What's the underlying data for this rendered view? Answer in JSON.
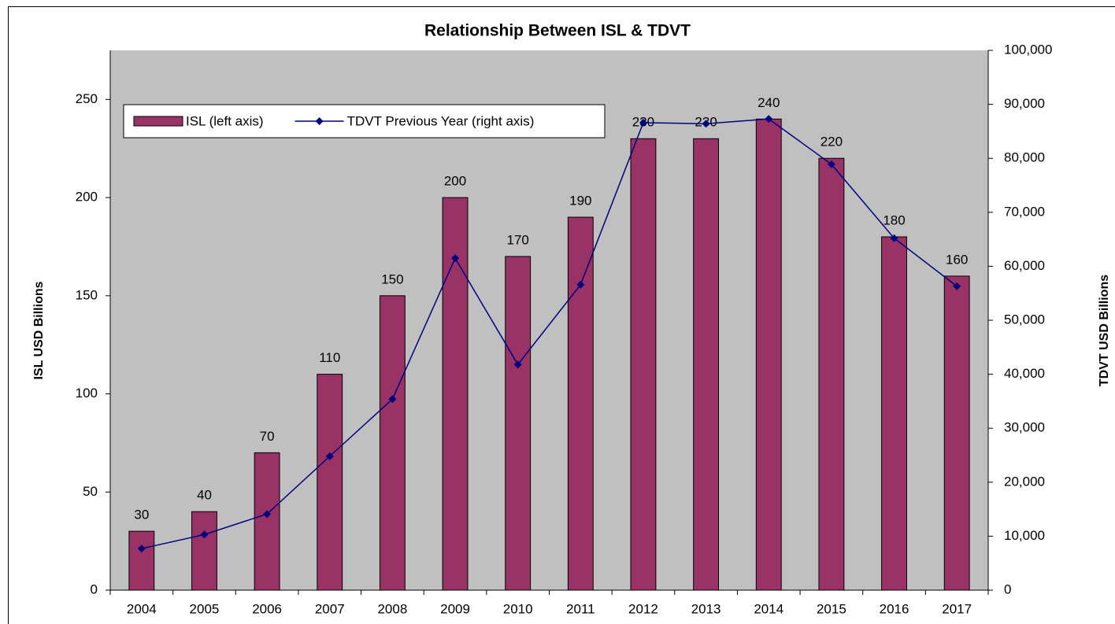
{
  "chart_data": {
    "type": "bar",
    "title": "Relationship Between ISL & TDVT",
    "y_label": "ISL USD Billions",
    "y2_label": "TDVT USD Billions",
    "categories": [
      "2004",
      "2005",
      "2006",
      "2007",
      "2008",
      "2009",
      "2010",
      "2011",
      "2012",
      "2013",
      "2014",
      "2015",
      "2016",
      "2017"
    ],
    "series": [
      {
        "name": "ISL (left axis)",
        "type": "bar",
        "color": "#993366",
        "values": [
          30,
          40,
          70,
          110,
          150,
          200,
          170,
          190,
          230,
          230,
          240,
          220,
          180,
          160
        ]
      },
      {
        "name": "TDVT Previous Year (right axis)",
        "type": "line",
        "axis": "y2",
        "color": "#000080",
        "values": [
          7700,
          10300,
          14100,
          24800,
          35400,
          61500,
          41800,
          56600,
          86600,
          86400,
          87300,
          78900,
          65200,
          56300
        ]
      }
    ],
    "ylim": [
      0,
      275
    ],
    "yticks": [
      0,
      50,
      100,
      150,
      200,
      250
    ],
    "y2lim": [
      0,
      100000
    ],
    "y2ticks": [
      0,
      {
        "value": 10000,
        "label": "10,000"
      },
      {
        "value": 20000,
        "label": "20,000"
      },
      {
        "value": 30000,
        "label": "30,000"
      },
      {
        "value": 40000,
        "label": "40,000"
      },
      {
        "value": 50000,
        "label": "50,000"
      },
      {
        "value": 60000,
        "label": "60,000"
      },
      {
        "value": 70000,
        "label": "70,000"
      },
      {
        "value": 80000,
        "label": "80,000"
      },
      {
        "value": 90000,
        "label": "90,000"
      },
      {
        "value": 100000,
        "label": "100,000"
      }
    ],
    "legend": "top-left",
    "grid": false,
    "plot_background": "#c0c0c0"
  }
}
